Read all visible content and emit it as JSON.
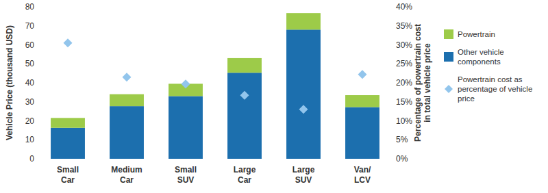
{
  "chart_data": {
    "type": "bar",
    "stacked": true,
    "grid": false,
    "legend": "right",
    "y_label": "Vehicle Price (thousand USD)",
    "y2_label": "Percentage of powertrain cost in total vehicle price",
    "categories": [
      "Small Car",
      "Medium Car",
      "Small SUV",
      "Large Car",
      "Large SUV",
      "Van/LCV"
    ],
    "series": [
      {
        "name": "Powertrain",
        "color": "#9dcb49",
        "values": [
          5.2,
          6.3,
          6.5,
          7.7,
          8.7,
          6.3
        ]
      },
      {
        "name": "Other vehicle components",
        "color": "#1c6fae",
        "values": [
          16.3,
          27.7,
          33,
          45.3,
          68,
          27.2
        ]
      },
      {
        "name": "Powertrain cost as percentage of vehicle price",
        "type": "scatter",
        "marker": "diamond",
        "axis": "y2",
        "color": "#92c5ec",
        "values": [
          30.5,
          21.5,
          19.7,
          16.7,
          13,
          22.2
        ]
      }
    ],
    "ylim": [
      0,
      80
    ],
    "yticks": [
      0,
      10,
      20,
      30,
      40,
      50,
      60,
      70,
      80
    ],
    "y2lim": [
      0,
      40
    ],
    "y2ticks": [
      {
        "value": 0,
        "label": "0%"
      },
      {
        "value": 5,
        "label": "5%"
      },
      {
        "value": 10,
        "label": "10%"
      },
      {
        "value": 15,
        "label": "15%"
      },
      {
        "value": 20,
        "label": "20%"
      },
      {
        "value": 25,
        "label": "25%"
      },
      {
        "value": 30,
        "label": "30%"
      },
      {
        "value": 35,
        "label": "35%"
      },
      {
        "value": 40,
        "label": "40%"
      }
    ]
  }
}
